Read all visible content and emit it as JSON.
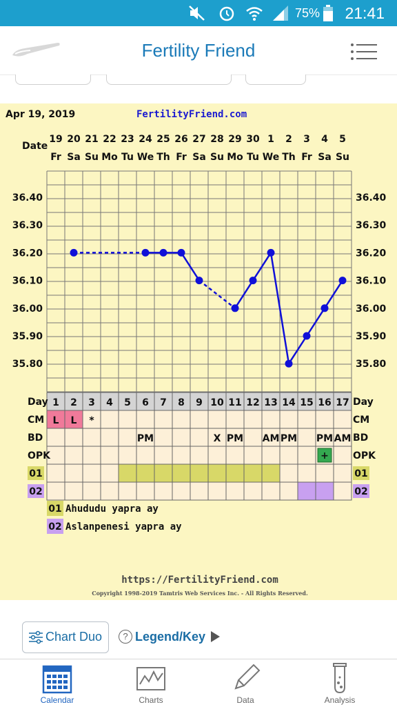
{
  "status_bar": {
    "battery": "75%",
    "time": "21:41"
  },
  "app": {
    "title": "Fertility Friend"
  },
  "header": {
    "date": "Apr 19, 2019",
    "site": "FertilityFriend.com"
  },
  "footer": {
    "url": "https://FertilityFriend.com",
    "copyright": "Copyright 1998-2019 Tamtris Web Services Inc. - All Rights Reserved."
  },
  "rows": {
    "date_label": "Date",
    "day_label": "Day",
    "cm_label": "CM",
    "bd_label": "BD",
    "opk_label": "OPK"
  },
  "chart_data": {
    "type": "line",
    "dates": [
      "19",
      "20",
      "21",
      "22",
      "23",
      "24",
      "25",
      "26",
      "27",
      "28",
      "29",
      "30",
      "1",
      "2",
      "3",
      "4",
      "5"
    ],
    "weekdays": [
      "Fr",
      "Sa",
      "Su",
      "Mo",
      "Tu",
      "We",
      "Th",
      "Fr",
      "Sa",
      "Su",
      "Mo",
      "Tu",
      "We",
      "Th",
      "Fr",
      "Sa",
      "Su"
    ],
    "cycle_days": [
      1,
      2,
      3,
      4,
      5,
      6,
      7,
      8,
      9,
      10,
      11,
      12,
      13,
      14,
      15,
      16,
      17
    ],
    "yticks": [
      "36.40",
      "36.30",
      "36.20",
      "36.10",
      "36.00",
      "35.90",
      "35.80"
    ],
    "ylim": [
      35.75,
      36.45
    ],
    "series": [
      {
        "color": "#1010d8",
        "values": [
          null,
          36.2,
          null,
          null,
          null,
          36.2,
          36.2,
          36.2,
          36.1,
          null,
          36.0,
          36.1,
          36.2,
          35.8,
          35.9,
          36.0,
          36.1
        ]
      }
    ],
    "dashed_segments": [
      [
        2,
        6
      ],
      [
        9,
        11
      ]
    ],
    "cm": [
      "L",
      "L",
      "*",
      "",
      "",
      "",
      "",
      "",
      "",
      "",
      "",
      "",
      "",
      "",
      "",
      "",
      ""
    ],
    "bd": [
      "",
      "",
      "",
      "",
      "",
      "PM",
      "",
      "",
      "",
      "X",
      "PM",
      "",
      "AM",
      "PM",
      "",
      "PM",
      "AM"
    ],
    "opk": [
      "",
      "",
      "",
      "",
      "",
      "",
      "",
      "",
      "",
      "",
      "",
      "",
      "",
      "",
      "",
      "+",
      ""
    ],
    "row01": {
      "label": "01",
      "color": "#d8d868",
      "filled_days": [
        5,
        6,
        7,
        8,
        9,
        10,
        11,
        12,
        13
      ]
    },
    "row02": {
      "label": "02",
      "color": "#c8a0f0",
      "filled_days": [
        15,
        16
      ]
    },
    "legend": [
      {
        "code": "01",
        "text": "Ahududu yapra ay"
      },
      {
        "code": "02",
        "text": "Aslanpenesi yapra ay"
      }
    ]
  },
  "actions": {
    "chart_duo": "Chart Duo",
    "legend_key": "Legend/Key"
  },
  "nav": [
    {
      "label": "Calendar",
      "icon": "calendar-icon",
      "active": true
    },
    {
      "label": "Charts",
      "icon": "charts-icon",
      "active": false
    },
    {
      "label": "Data",
      "icon": "pencil-icon",
      "active": false
    },
    {
      "label": "Analysis",
      "icon": "test-tube-icon",
      "active": false
    }
  ]
}
